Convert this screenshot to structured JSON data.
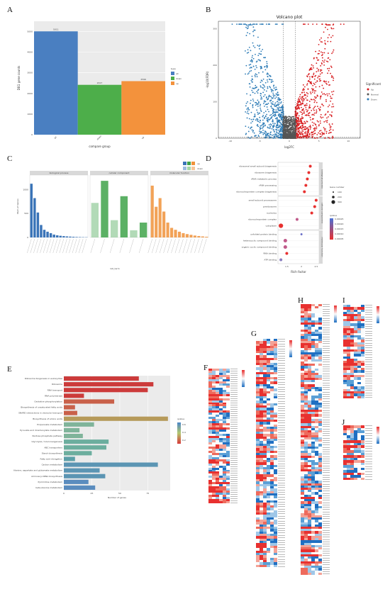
{
  "panels": {
    "A": {
      "letter": "A",
      "chart_data": {
        "type": "bar",
        "categories": [
          "all",
          "down",
          "up"
        ],
        "values": [
          5011,
          2417,
          2596
        ],
        "ylabel": "DEG gene counts",
        "xlabel": "compare group",
        "ylim": [
          0,
          5500
        ],
        "yticks": [
          0,
          1000,
          2000,
          3000,
          4000,
          5000
        ],
        "legend_title": "type",
        "legend_position": "right",
        "colors": [
          "#4a7fc1",
          "#4dae4a",
          "#f3923c"
        ]
      }
    },
    "B": {
      "letter": "B",
      "chart_data": {
        "type": "scatter",
        "title": "Volcano plot",
        "xlabel": "log2FC",
        "ylabel": "-log10(FDR)",
        "xticks": [
          -10,
          -5,
          0,
          5,
          10
        ],
        "yticks": [
          0,
          100,
          200,
          300
        ],
        "xlim": [
          -12,
          12
        ],
        "ylim": [
          0,
          320
        ],
        "legend_title": "Significant",
        "legend_position": "right",
        "series": [
          {
            "name": "Up",
            "color": "#d7191c"
          },
          {
            "name": "Normal",
            "color": "#555555"
          },
          {
            "name": "Down",
            "color": "#2c7bb6"
          }
        ]
      }
    },
    "C": {
      "letter": "C",
      "chart_data": {
        "type": "bar",
        "facets": [
          "biological process",
          "cellular component",
          "molecular function"
        ],
        "ylabel": "Num of Genes",
        "xlabel": "GO_term",
        "legend": [
          "up",
          "down"
        ],
        "yticks": [
          0,
          500,
          1000
        ],
        "ylim": [
          0,
          1300
        ],
        "series": [
          {
            "facet": "biological process",
            "color": "#3a74b8",
            "values": [
              1120,
              820,
              520,
              260,
              160,
              120,
              90,
              60,
              45,
              35,
              28,
              22,
              18,
              14,
              10,
              8,
              6,
              5
            ]
          },
          {
            "facet": "cellular component",
            "color": "#3fa34a",
            "values": [
              720,
              1180,
              360,
              860,
              150,
              310
            ]
          },
          {
            "facet": "molecular function",
            "color": "#f0923a",
            "values": [
              1080,
              640,
              820,
              540,
              310,
              200,
              160,
              120,
              90,
              70,
              55,
              40,
              30,
              22,
              15
            ]
          }
        ]
      }
    },
    "D": {
      "letter": "D",
      "chart_data": {
        "type": "scatter",
        "xlabel": "Rich factor",
        "xticks": [
          1.5,
          2.0,
          2.5
        ],
        "xlim": [
          1.2,
          2.6
        ],
        "facets": [
          "biological process",
          "cellular component",
          "molecular function"
        ],
        "size_legend_title": "Gene number",
        "size_legend": [
          "100",
          "200",
          "300"
        ],
        "color_legend_title": "qvalue",
        "color_legend": [
          "0.00025",
          "0.00020",
          "0.00015",
          "0.00010",
          "0.00005"
        ],
        "points": [
          {
            "term": "ribosomal small subunit biogenesis",
            "facet": 0,
            "x": 2.3,
            "size": 2,
            "q": 5e-05
          },
          {
            "term": "ribosome biogenesis",
            "facet": 0,
            "x": 2.25,
            "size": 2,
            "q": 5e-05
          },
          {
            "term": "rRNA metabolic process",
            "facet": 0,
            "x": 2.2,
            "size": 2,
            "q": 5e-05
          },
          {
            "term": "rRNA processing",
            "facet": 0,
            "x": 2.15,
            "size": 2,
            "q": 5e-05
          },
          {
            "term": "ribonucleoprotein complex biogenesis",
            "facet": 0,
            "x": 2.1,
            "size": 2,
            "q": 5e-05
          },
          {
            "term": "small-subunit processome",
            "facet": 1,
            "x": 2.5,
            "size": 2,
            "q": 5e-05
          },
          {
            "term": "preribosome",
            "facet": 1,
            "x": 2.45,
            "size": 2,
            "q": 8e-05
          },
          {
            "term": "nucleolus",
            "facet": 1,
            "x": 2.35,
            "size": 2,
            "q": 5e-05
          },
          {
            "term": "ribonucleoprotein complex",
            "facet": 1,
            "x": 1.85,
            "size": 2,
            "q": 0.0001
          },
          {
            "term": "cytoplasm",
            "facet": 1,
            "x": 1.3,
            "size": 4,
            "q": 5e-05
          },
          {
            "term": "unfolded protein binding",
            "facet": 2,
            "x": 2.0,
            "size": 1,
            "q": 0.00025
          },
          {
            "term": "heterocyclic compound binding",
            "facet": 2,
            "x": 1.45,
            "size": 3,
            "q": 0.0001
          },
          {
            "term": "organic cyclic compound binding",
            "facet": 2,
            "x": 1.45,
            "size": 3,
            "q": 0.0001
          },
          {
            "term": "RNA binding",
            "facet": 2,
            "x": 1.5,
            "size": 2,
            "q": 5e-05
          },
          {
            "term": "ATP binding",
            "facet": 2,
            "x": 1.3,
            "size": 2,
            "q": 0.00015
          }
        ]
      }
    },
    "E": {
      "letter": "E",
      "chart_data": {
        "type": "bar",
        "orientation": "horizontal",
        "xlabel": "Number of genes",
        "xticks": [
          0,
          25,
          50,
          75
        ],
        "xlim": [
          0,
          95
        ],
        "legend_title": "qvalue",
        "legend_ticks": [
          "0.6",
          "0.4",
          "0.2"
        ],
        "categories": [
          "Ribosome biogenesis in eukaryotes",
          "Ribosome",
          "RNA transport",
          "RNA polymerase",
          "Oxidative phosphorylation",
          "Biosynthesis of unsaturated fatty acids",
          "SNARE interactions in vesicular transport",
          "Biosynthesis of amino acids",
          "Propanoate metabolism",
          "Pyruvate and dicarboxylate metabolism",
          "Pentose phosphate pathway",
          "Glycolysis / Gluconeogenesis",
          "ABC transporters",
          "Starch biosynthesis",
          "Fatty acid elongation",
          "Carbon metabolism",
          "Alanine, aspartate and glutamate metabolism",
          "Aminoacyl-tRNA biosynthesis",
          "Pyrimidine metabolism",
          "beta-Alanine metabolism"
        ],
        "values": [
          67,
          80,
          75,
          18,
          45,
          10,
          12,
          93,
          27,
          14,
          17,
          40,
          38,
          25,
          10,
          84,
          32,
          37,
          22,
          28
        ],
        "colors": [
          "#cc3b3b",
          "#cc3b3b",
          "#cc3b3b",
          "#cc3b3b",
          "#c9614a",
          "#c9614a",
          "#c9614a",
          "#b69a5a",
          "#7fb49a",
          "#7fb49a",
          "#7fb49a",
          "#6cae9e",
          "#6cae9e",
          "#6cae9e",
          "#5ca0a8",
          "#5b95b3",
          "#5b95b3",
          "#5b95b3",
          "#5a8cbe",
          "#5a8cbe"
        ]
      }
    },
    "F": {
      "letter": "F"
    },
    "G": {
      "letter": "G"
    },
    "H": {
      "letter": "H"
    },
    "I": {
      "letter": "I"
    },
    "J": {
      "letter": "J"
    }
  }
}
